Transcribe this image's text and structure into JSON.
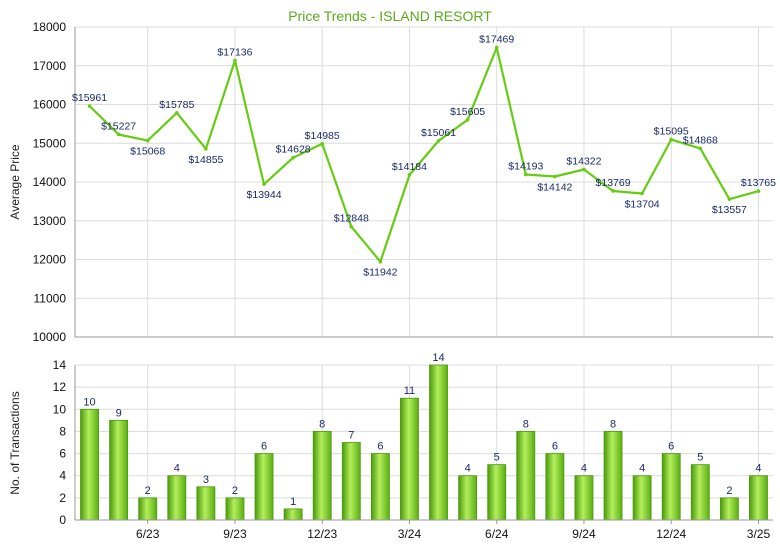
{
  "chart_data": [
    {
      "type": "line",
      "title": "Price Trends - ISLAND RESORT",
      "ylabel": "Average Price",
      "ylim": [
        10000,
        18000
      ],
      "yticks": [
        10000,
        11000,
        12000,
        13000,
        14000,
        15000,
        16000,
        17000,
        18000
      ],
      "grid": true,
      "series": [
        {
          "values": [
            15961,
            15227,
            15068,
            15785,
            14855,
            17136,
            13944,
            14628,
            14985,
            12848,
            11942,
            14184,
            15061,
            15605,
            17469,
            14193,
            14142,
            14322,
            13769,
            13704,
            15095,
            14868,
            13557,
            13765
          ],
          "labels": [
            "$15961",
            "$15227",
            "$15068",
            "$15785",
            "$14855",
            "$17136",
            "$13944",
            "$14628",
            "$14985",
            "$12848",
            "$11942",
            "$14184",
            "$15061",
            "$15605",
            "$17469",
            "$14193",
            "$14142",
            "$14322",
            "$13769",
            "$13704",
            "$15095",
            "$14868",
            "$13557",
            "$13765"
          ]
        }
      ]
    },
    {
      "type": "bar",
      "ylabel": "No. of Transactions",
      "ylim": [
        0,
        14
      ],
      "yticks": [
        0,
        2,
        4,
        6,
        8,
        10,
        12,
        14
      ],
      "xticklabels": [
        {
          "index": 2,
          "label": "6/23"
        },
        {
          "index": 5,
          "label": "9/23"
        },
        {
          "index": 8,
          "label": "12/23"
        },
        {
          "index": 11,
          "label": "3/24"
        },
        {
          "index": 14,
          "label": "6/24"
        },
        {
          "index": 17,
          "label": "9/24"
        },
        {
          "index": 20,
          "label": "12/24"
        },
        {
          "index": 23,
          "label": "3/25"
        }
      ],
      "values": [
        10,
        9,
        2,
        4,
        3,
        2,
        6,
        1,
        8,
        7,
        6,
        11,
        14,
        4,
        5,
        8,
        6,
        4,
        8,
        4,
        6,
        5,
        2,
        4
      ],
      "grid": true
    }
  ],
  "colors": {
    "line": "#66cc11",
    "bar_light": "#b4ee5c",
    "bar_mid": "#7ccc22",
    "bar_dark": "#4a9a0c",
    "grid": "#dcdcdc",
    "axis": "#999999",
    "label": "#1a2a6a",
    "title": "#5aaa1a"
  }
}
